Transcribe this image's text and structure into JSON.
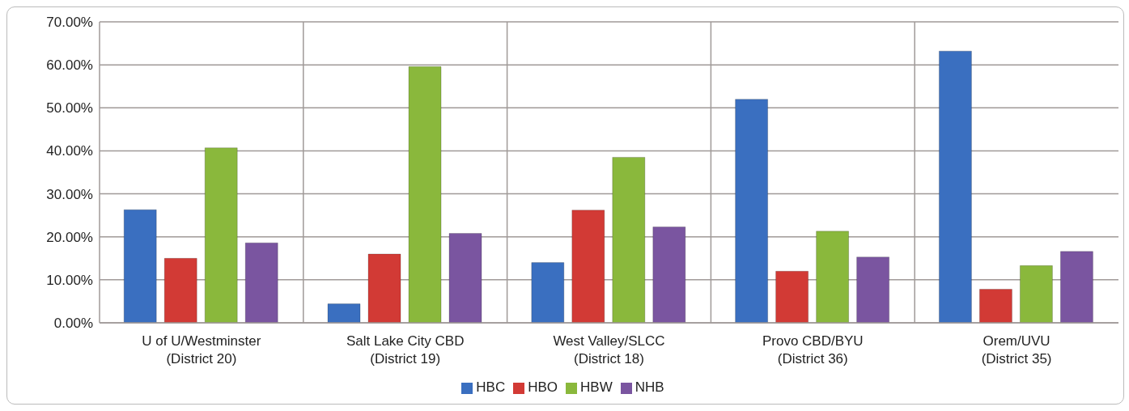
{
  "chart_data": {
    "type": "bar",
    "categories": [
      "U of U/Westminster\n(District 20)",
      "Salt Lake City CBD\n(District 19)",
      "West Valley/SLCC\n(District 18)",
      "Provo CBD/BYU\n(District 36)",
      "Orem/UVU\n(District 35)"
    ],
    "series": [
      {
        "name": "HBC",
        "color": "#3a6fc0",
        "values": [
          26.3,
          4.4,
          14.0,
          52.0,
          63.2
        ]
      },
      {
        "name": "HBO",
        "color": "#d23a35",
        "values": [
          15.0,
          16.0,
          26.2,
          12.0,
          7.8
        ]
      },
      {
        "name": "HBW",
        "color": "#8ab83c",
        "values": [
          40.7,
          59.6,
          38.5,
          21.3,
          13.3
        ]
      },
      {
        "name": "NHB",
        "color": "#7a55a0",
        "values": [
          18.6,
          20.8,
          22.3,
          15.3,
          16.6
        ]
      }
    ],
    "ylim": [
      0,
      70
    ],
    "yticks": [
      {
        "value": 0,
        "label": "0.00%"
      },
      {
        "value": 10,
        "label": "10.00%"
      },
      {
        "value": 20,
        "label": "20.00%"
      },
      {
        "value": 30,
        "label": "30.00%"
      },
      {
        "value": 40,
        "label": "40.00%"
      },
      {
        "value": 50,
        "label": "50.00%"
      },
      {
        "value": 60,
        "label": "60.00%"
      },
      {
        "value": 70,
        "label": "70.00%"
      }
    ],
    "grid": true,
    "legend": "bottom"
  }
}
